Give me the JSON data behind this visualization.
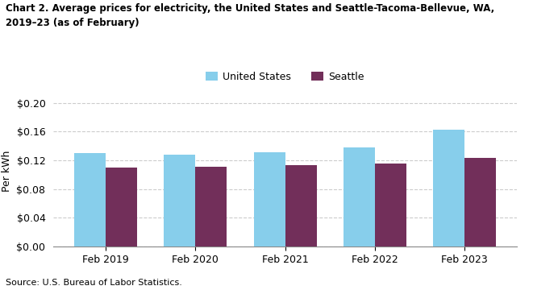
{
  "title": "Chart 2. Average prices for electricity, the United States and Seattle-Tacoma-Bellevue, WA,\n2019–23 (as of February)",
  "ylabel": "Per kWh",
  "source": "Source: U.S. Bureau of Labor Statistics.",
  "categories": [
    "Feb 2019",
    "Feb 2020",
    "Feb 2021",
    "Feb 2022",
    "Feb 2023"
  ],
  "us_values": [
    0.13,
    0.128,
    0.131,
    0.138,
    0.163
  ],
  "seattle_values": [
    0.11,
    0.111,
    0.113,
    0.116,
    0.123
  ],
  "us_color": "#87CEEB",
  "seattle_color": "#722F5A",
  "us_label": "United States",
  "seattle_label": "Seattle",
  "ylim": [
    0.0,
    0.21
  ],
  "yticks": [
    0.0,
    0.04,
    0.08,
    0.12,
    0.16,
    0.2
  ],
  "background_color": "#ffffff",
  "grid_color": "#cccccc",
  "bar_width": 0.35
}
